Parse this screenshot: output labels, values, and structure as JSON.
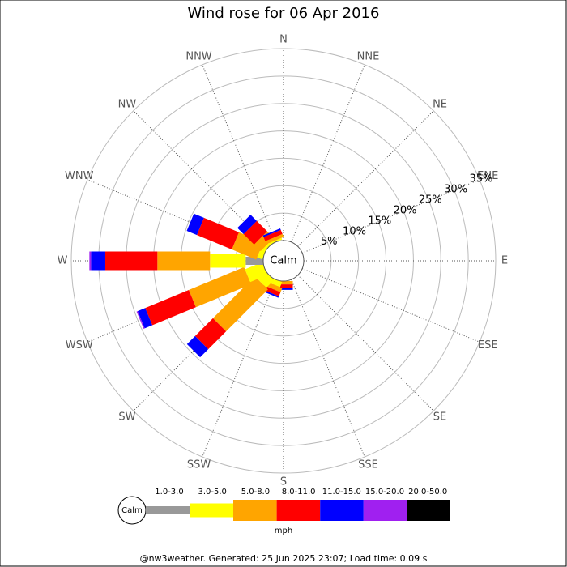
{
  "chart_data": {
    "type": "windrose",
    "title": "Wind rose for 06 Apr 2016",
    "directions": [
      "N",
      "NNE",
      "NE",
      "ENE",
      "E",
      "ESE",
      "SE",
      "SSE",
      "S",
      "SSW",
      "SW",
      "WSW",
      "W",
      "WNW",
      "NW",
      "NNW"
    ],
    "calm_label": "Calm",
    "rlim": [
      0,
      35
    ],
    "rticks": [
      {
        "value": 5,
        "label": "5%"
      },
      {
        "value": 10,
        "label": "10%"
      },
      {
        "value": 15,
        "label": "15%"
      },
      {
        "value": 20,
        "label": "20%"
      },
      {
        "value": 25,
        "label": "25%"
      },
      {
        "value": 30,
        "label": "30%"
      },
      {
        "value": 35,
        "label": "35%"
      }
    ],
    "series": [
      {
        "name": "1.0-3.0",
        "color": "#999999",
        "values": [
          0,
          0,
          0,
          0,
          0,
          0,
          0,
          0,
          0,
          0,
          0,
          0,
          3.2,
          0,
          0,
          0
        ]
      },
      {
        "name": "3.0-5.0",
        "color": "#ffff00",
        "values": [
          0,
          0,
          0,
          0,
          0,
          0,
          0,
          0,
          0,
          1.0,
          2.0,
          3.4,
          6.5,
          1.0,
          0.5,
          0.3
        ]
      },
      {
        "name": "5.0-8.0",
        "color": "#ffa500",
        "values": [
          0,
          0,
          0,
          0,
          0,
          0,
          0,
          0,
          0.6,
          0.8,
          10.8,
          10.9,
          9.6,
          4.8,
          1.7,
          0.6
        ]
      },
      {
        "name": "8.0-11.0",
        "color": "#ff0000",
        "values": [
          0,
          0,
          0,
          0,
          0,
          0,
          0,
          0,
          0.6,
          0.8,
          4.6,
          8.6,
          9.5,
          6.9,
          2.7,
          0.8
        ]
      },
      {
        "name": "11.0-15.0",
        "color": "#0000ff",
        "values": [
          0,
          0,
          0,
          0,
          0,
          0,
          0,
          0,
          0.4,
          0.3,
          2.1,
          1.5,
          2.6,
          2.0,
          1.6,
          0.3
        ]
      },
      {
        "name": "15.0-20.0",
        "color": "#a020f0",
        "values": [
          0,
          0,
          0,
          0,
          0,
          0,
          0,
          0,
          0,
          0,
          0,
          0.2,
          0.3,
          0,
          0,
          0
        ]
      },
      {
        "name": "20.0-50.0",
        "color": "#000000",
        "values": [
          0,
          0,
          0,
          0,
          0,
          0,
          0,
          0,
          0,
          0,
          0,
          0,
          0,
          0,
          0,
          0
        ]
      }
    ],
    "unit": "mph"
  },
  "footer": "@nw3weather. Generated: 25 Jun 2025 23:07; Load time: 0.09 s"
}
